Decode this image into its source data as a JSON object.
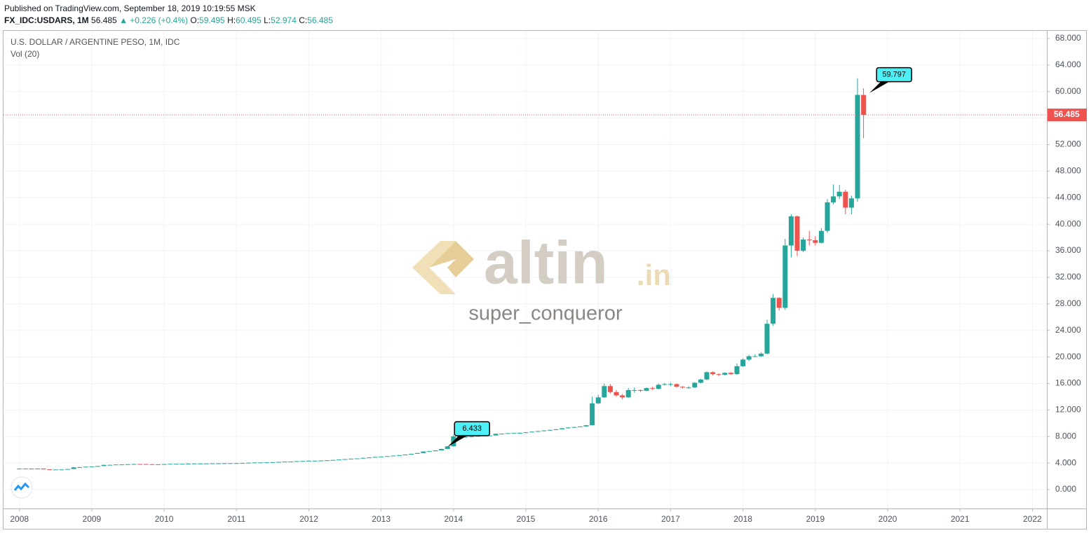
{
  "header": {
    "published": "Published on TradingView.com, September 18, 2019 10:19:55 MSK",
    "symbol": "FX_IDC:USDARS, 1M",
    "change": "▲ +0.226 (+0.4%)",
    "ohlc_labels": [
      "O:",
      "H:",
      "L:",
      "C:"
    ]
  },
  "chart_data": {
    "type": "candlestick",
    "title": "U.S. DOLLAR / ARGENTINE PESO, 1M, IDC",
    "subtitle": "Vol (20)",
    "watermark": [
      "altin",
      ".in"
    ],
    "watermark_author": "super_conqueror",
    "up_color": "#26a69a",
    "down_color": "#ef5350",
    "grid": true,
    "x": [
      "2008-01",
      "2008-02",
      "2008-03",
      "2008-04",
      "2008-05",
      "2008-06",
      "2008-07",
      "2008-08",
      "2008-09",
      "2008-10",
      "2008-11",
      "2008-12",
      "2009-01",
      "2009-02",
      "2009-03",
      "2009-04",
      "2009-05",
      "2009-06",
      "2009-07",
      "2009-08",
      "2009-09",
      "2009-10",
      "2009-11",
      "2009-12",
      "2010-01",
      "2010-02",
      "2010-03",
      "2010-04",
      "2010-05",
      "2010-06",
      "2010-07",
      "2010-08",
      "2010-09",
      "2010-10",
      "2010-11",
      "2010-12",
      "2011-01",
      "2011-02",
      "2011-03",
      "2011-04",
      "2011-05",
      "2011-06",
      "2011-07",
      "2011-08",
      "2011-09",
      "2011-10",
      "2011-11",
      "2011-12",
      "2012-01",
      "2012-02",
      "2012-03",
      "2012-04",
      "2012-05",
      "2012-06",
      "2012-07",
      "2012-08",
      "2012-09",
      "2012-10",
      "2012-11",
      "2012-12",
      "2013-01",
      "2013-02",
      "2013-03",
      "2013-04",
      "2013-05",
      "2013-06",
      "2013-07",
      "2013-08",
      "2013-09",
      "2013-10",
      "2013-11",
      "2013-12",
      "2014-01",
      "2014-02",
      "2014-03",
      "2014-04",
      "2014-05",
      "2014-06",
      "2014-07",
      "2014-08",
      "2014-09",
      "2014-10",
      "2014-11",
      "2014-12",
      "2015-01",
      "2015-02",
      "2015-03",
      "2015-04",
      "2015-05",
      "2015-06",
      "2015-07",
      "2015-08",
      "2015-09",
      "2015-10",
      "2015-11",
      "2015-12",
      "2016-01",
      "2016-02",
      "2016-03",
      "2016-04",
      "2016-05",
      "2016-06",
      "2016-07",
      "2016-08",
      "2016-09",
      "2016-10",
      "2016-11",
      "2016-12",
      "2017-01",
      "2017-02",
      "2017-03",
      "2017-04",
      "2017-05",
      "2017-06",
      "2017-07",
      "2017-08",
      "2017-09",
      "2017-10",
      "2017-11",
      "2017-12",
      "2018-01",
      "2018-02",
      "2018-03",
      "2018-04",
      "2018-05",
      "2018-06",
      "2018-07",
      "2018-08",
      "2018-09",
      "2018-10",
      "2018-11",
      "2018-12",
      "2019-01",
      "2019-02",
      "2019-03",
      "2019-04",
      "2019-05",
      "2019-06",
      "2019-07",
      "2019-08",
      "2019-09"
    ],
    "open": [
      3.14,
      3.16,
      3.16,
      3.16,
      3.17,
      3.05,
      3.02,
      3.02,
      3.03,
      3.1,
      3.35,
      3.37,
      3.45,
      3.47,
      3.55,
      3.72,
      3.73,
      3.78,
      3.79,
      3.82,
      3.85,
      3.84,
      3.82,
      3.81,
      3.8,
      3.84,
      3.88,
      3.88,
      3.88,
      3.92,
      3.93,
      3.93,
      3.94,
      3.96,
      3.96,
      3.98,
      3.98,
      3.99,
      4.02,
      4.05,
      4.08,
      4.09,
      4.11,
      4.13,
      4.17,
      4.21,
      4.22,
      4.28,
      4.3,
      4.35,
      4.35,
      4.38,
      4.42,
      4.47,
      4.53,
      4.6,
      4.66,
      4.7,
      4.78,
      4.84,
      4.92,
      4.98,
      5.04,
      5.12,
      5.19,
      5.28,
      5.39,
      5.51,
      5.74,
      5.79,
      5.91,
      6.13,
      6.52,
      8.02,
      7.87,
      8.0,
      8.0,
      8.08,
      8.13,
      8.16,
      8.41,
      8.43,
      8.5,
      8.53,
      8.55,
      8.64,
      8.73,
      8.82,
      8.91,
      9.0,
      9.09,
      9.24,
      9.36,
      9.43,
      9.52,
      9.7,
      13.0,
      13.9,
      15.6,
      14.7,
      14.2,
      13.9,
      15.0,
      15.0,
      14.9,
      15.3,
      15.2,
      15.8,
      15.9,
      15.9,
      15.5,
      15.4,
      15.4,
      16.1,
      16.6,
      17.7,
      17.4,
      17.3,
      17.6,
      17.4,
      18.6,
      19.6,
      20.1,
      20.1,
      20.5,
      25.0,
      28.9,
      27.4,
      36.8,
      41.2,
      36.0,
      37.7,
      37.6,
      37.2,
      39.0,
      43.3,
      44.2,
      44.9,
      42.5,
      43.9,
      59.495
    ],
    "high": [
      3.18,
      3.18,
      3.18,
      3.19,
      3.19,
      3.07,
      3.04,
      3.05,
      3.12,
      3.4,
      3.42,
      3.48,
      3.49,
      3.57,
      3.74,
      3.75,
      3.8,
      3.81,
      3.84,
      3.87,
      3.87,
      3.86,
      3.84,
      3.83,
      3.86,
      3.9,
      3.9,
      3.9,
      3.94,
      3.95,
      3.95,
      3.96,
      3.98,
      3.98,
      4.0,
      4.0,
      4.01,
      4.04,
      4.07,
      4.1,
      4.11,
      4.13,
      4.15,
      4.19,
      4.23,
      4.24,
      4.3,
      4.32,
      4.37,
      4.37,
      4.4,
      4.44,
      4.49,
      4.55,
      4.62,
      4.68,
      4.72,
      4.8,
      4.86,
      4.94,
      5.0,
      5.06,
      5.14,
      5.21,
      5.3,
      5.41,
      5.53,
      5.76,
      5.81,
      5.93,
      6.15,
      6.55,
      8.3,
      8.1,
      8.05,
      8.05,
      8.12,
      8.16,
      8.2,
      8.45,
      8.46,
      8.53,
      8.56,
      8.6,
      8.67,
      8.76,
      8.85,
      8.94,
      9.03,
      9.12,
      9.27,
      9.39,
      9.46,
      9.55,
      9.73,
      14.0,
      14.3,
      16.0,
      15.9,
      15.0,
      14.4,
      15.3,
      15.4,
      15.1,
      15.4,
      15.5,
      16.0,
      16.1,
      16.1,
      16.0,
      15.6,
      15.6,
      16.2,
      16.7,
      17.8,
      17.8,
      17.5,
      17.7,
      17.7,
      19.0,
      19.8,
      20.3,
      20.4,
      20.7,
      25.6,
      29.5,
      29.0,
      37.8,
      41.5,
      41.3,
      38.0,
      39.0,
      38.2,
      39.4,
      43.8,
      46.0,
      45.9,
      45.2,
      44.3,
      62.0,
      60.495
    ],
    "low": [
      3.12,
      3.14,
      3.14,
      3.14,
      3.03,
      3.0,
      3.0,
      3.0,
      3.01,
      3.08,
      3.32,
      3.35,
      3.43,
      3.45,
      3.53,
      3.7,
      3.71,
      3.76,
      3.77,
      3.8,
      3.82,
      3.8,
      3.79,
      3.78,
      3.78,
      3.82,
      3.86,
      3.86,
      3.86,
      3.9,
      3.91,
      3.91,
      3.92,
      3.94,
      3.94,
      3.96,
      3.96,
      3.97,
      4.0,
      4.03,
      4.06,
      4.07,
      4.09,
      4.11,
      4.15,
      4.19,
      4.2,
      4.26,
      4.28,
      4.33,
      4.33,
      4.36,
      4.4,
      4.45,
      4.51,
      4.58,
      4.64,
      4.68,
      4.76,
      4.82,
      4.9,
      4.96,
      5.02,
      5.1,
      5.17,
      5.26,
      5.37,
      5.49,
      5.72,
      5.77,
      5.89,
      6.11,
      6.5,
      7.7,
      7.8,
      7.95,
      7.97,
      8.05,
      8.1,
      8.14,
      8.38,
      8.4,
      8.47,
      8.5,
      8.52,
      8.61,
      8.7,
      8.79,
      8.88,
      8.97,
      9.06,
      9.21,
      9.33,
      9.4,
      9.49,
      9.68,
      12.9,
      13.8,
      14.5,
      14.0,
      13.6,
      13.8,
      14.6,
      14.7,
      14.8,
      15.0,
      15.1,
      15.7,
      15.6,
      15.4,
      15.2,
      15.2,
      15.3,
      16.0,
      16.5,
      17.2,
      17.1,
      17.2,
      17.3,
      17.3,
      18.5,
      19.4,
      20.0,
      20.0,
      20.4,
      24.7,
      27.0,
      27.1,
      35.0,
      35.2,
      35.8,
      36.8,
      36.8,
      37.1,
      38.7,
      43.0,
      43.8,
      41.5,
      41.5,
      43.4,
      52.974
    ],
    "close": [
      3.16,
      3.16,
      3.16,
      3.17,
      3.05,
      3.02,
      3.02,
      3.03,
      3.1,
      3.35,
      3.37,
      3.45,
      3.47,
      3.55,
      3.72,
      3.73,
      3.78,
      3.79,
      3.82,
      3.85,
      3.84,
      3.82,
      3.81,
      3.8,
      3.84,
      3.88,
      3.88,
      3.88,
      3.92,
      3.93,
      3.93,
      3.94,
      3.96,
      3.96,
      3.98,
      3.98,
      3.99,
      4.02,
      4.05,
      4.08,
      4.09,
      4.11,
      4.13,
      4.17,
      4.21,
      4.22,
      4.28,
      4.3,
      4.35,
      4.35,
      4.38,
      4.42,
      4.47,
      4.53,
      4.6,
      4.66,
      4.7,
      4.78,
      4.84,
      4.92,
      4.98,
      5.04,
      5.12,
      5.19,
      5.28,
      5.39,
      5.51,
      5.74,
      5.79,
      5.91,
      6.13,
      6.52,
      8.02,
      7.87,
      8.0,
      8.0,
      8.08,
      8.13,
      8.16,
      8.41,
      8.43,
      8.5,
      8.53,
      8.55,
      8.64,
      8.73,
      8.82,
      8.91,
      9.0,
      9.09,
      9.24,
      9.36,
      9.43,
      9.52,
      9.7,
      13.0,
      13.9,
      15.6,
      14.7,
      14.2,
      13.9,
      15.0,
      15.0,
      14.9,
      15.3,
      15.2,
      15.8,
      15.9,
      15.9,
      15.5,
      15.4,
      15.4,
      16.1,
      16.6,
      17.7,
      17.4,
      17.3,
      17.6,
      17.4,
      18.6,
      19.6,
      20.1,
      20.1,
      20.5,
      25.0,
      28.9,
      27.4,
      36.8,
      41.2,
      36.0,
      37.7,
      37.6,
      37.2,
      39.0,
      43.3,
      44.2,
      44.9,
      42.5,
      43.9,
      59.5,
      56.485
    ],
    "annotations": [
      {
        "x": "2013-12",
        "value": 6.433
      },
      {
        "x": "2019-10",
        "value": 59.797
      }
    ],
    "xlim": [
      2007.78,
      2022.2
    ],
    "xticks": [
      2008,
      2009,
      2010,
      2011,
      2012,
      2013,
      2014,
      2015,
      2016,
      2017,
      2018,
      2019,
      2020,
      2021,
      2022
    ],
    "ylim": [
      -2.85,
      69.16
    ],
    "yticks": [
      {
        "value": 0,
        "label": "0.000"
      },
      {
        "value": 4,
        "label": "4.000"
      },
      {
        "value": 8,
        "label": "8.000"
      },
      {
        "value": 12,
        "label": "12.000"
      },
      {
        "value": 16,
        "label": "16.000"
      },
      {
        "value": 20,
        "label": "20.000"
      },
      {
        "value": 24,
        "label": "24.000"
      },
      {
        "value": 28,
        "label": "28.000"
      },
      {
        "value": 32,
        "label": "32.000"
      },
      {
        "value": 36,
        "label": "36.000"
      },
      {
        "value": 40,
        "label": "40.000"
      },
      {
        "value": 44,
        "label": "44.000"
      },
      {
        "value": 48,
        "label": "48.000"
      },
      {
        "value": 52,
        "label": "52.000"
      },
      {
        "value": 56,
        "label": "56.000"
      },
      {
        "value": 60,
        "label": "60.000"
      },
      {
        "value": 64,
        "label": "64.000"
      },
      {
        "value": 68,
        "label": "68.000"
      }
    ]
  }
}
